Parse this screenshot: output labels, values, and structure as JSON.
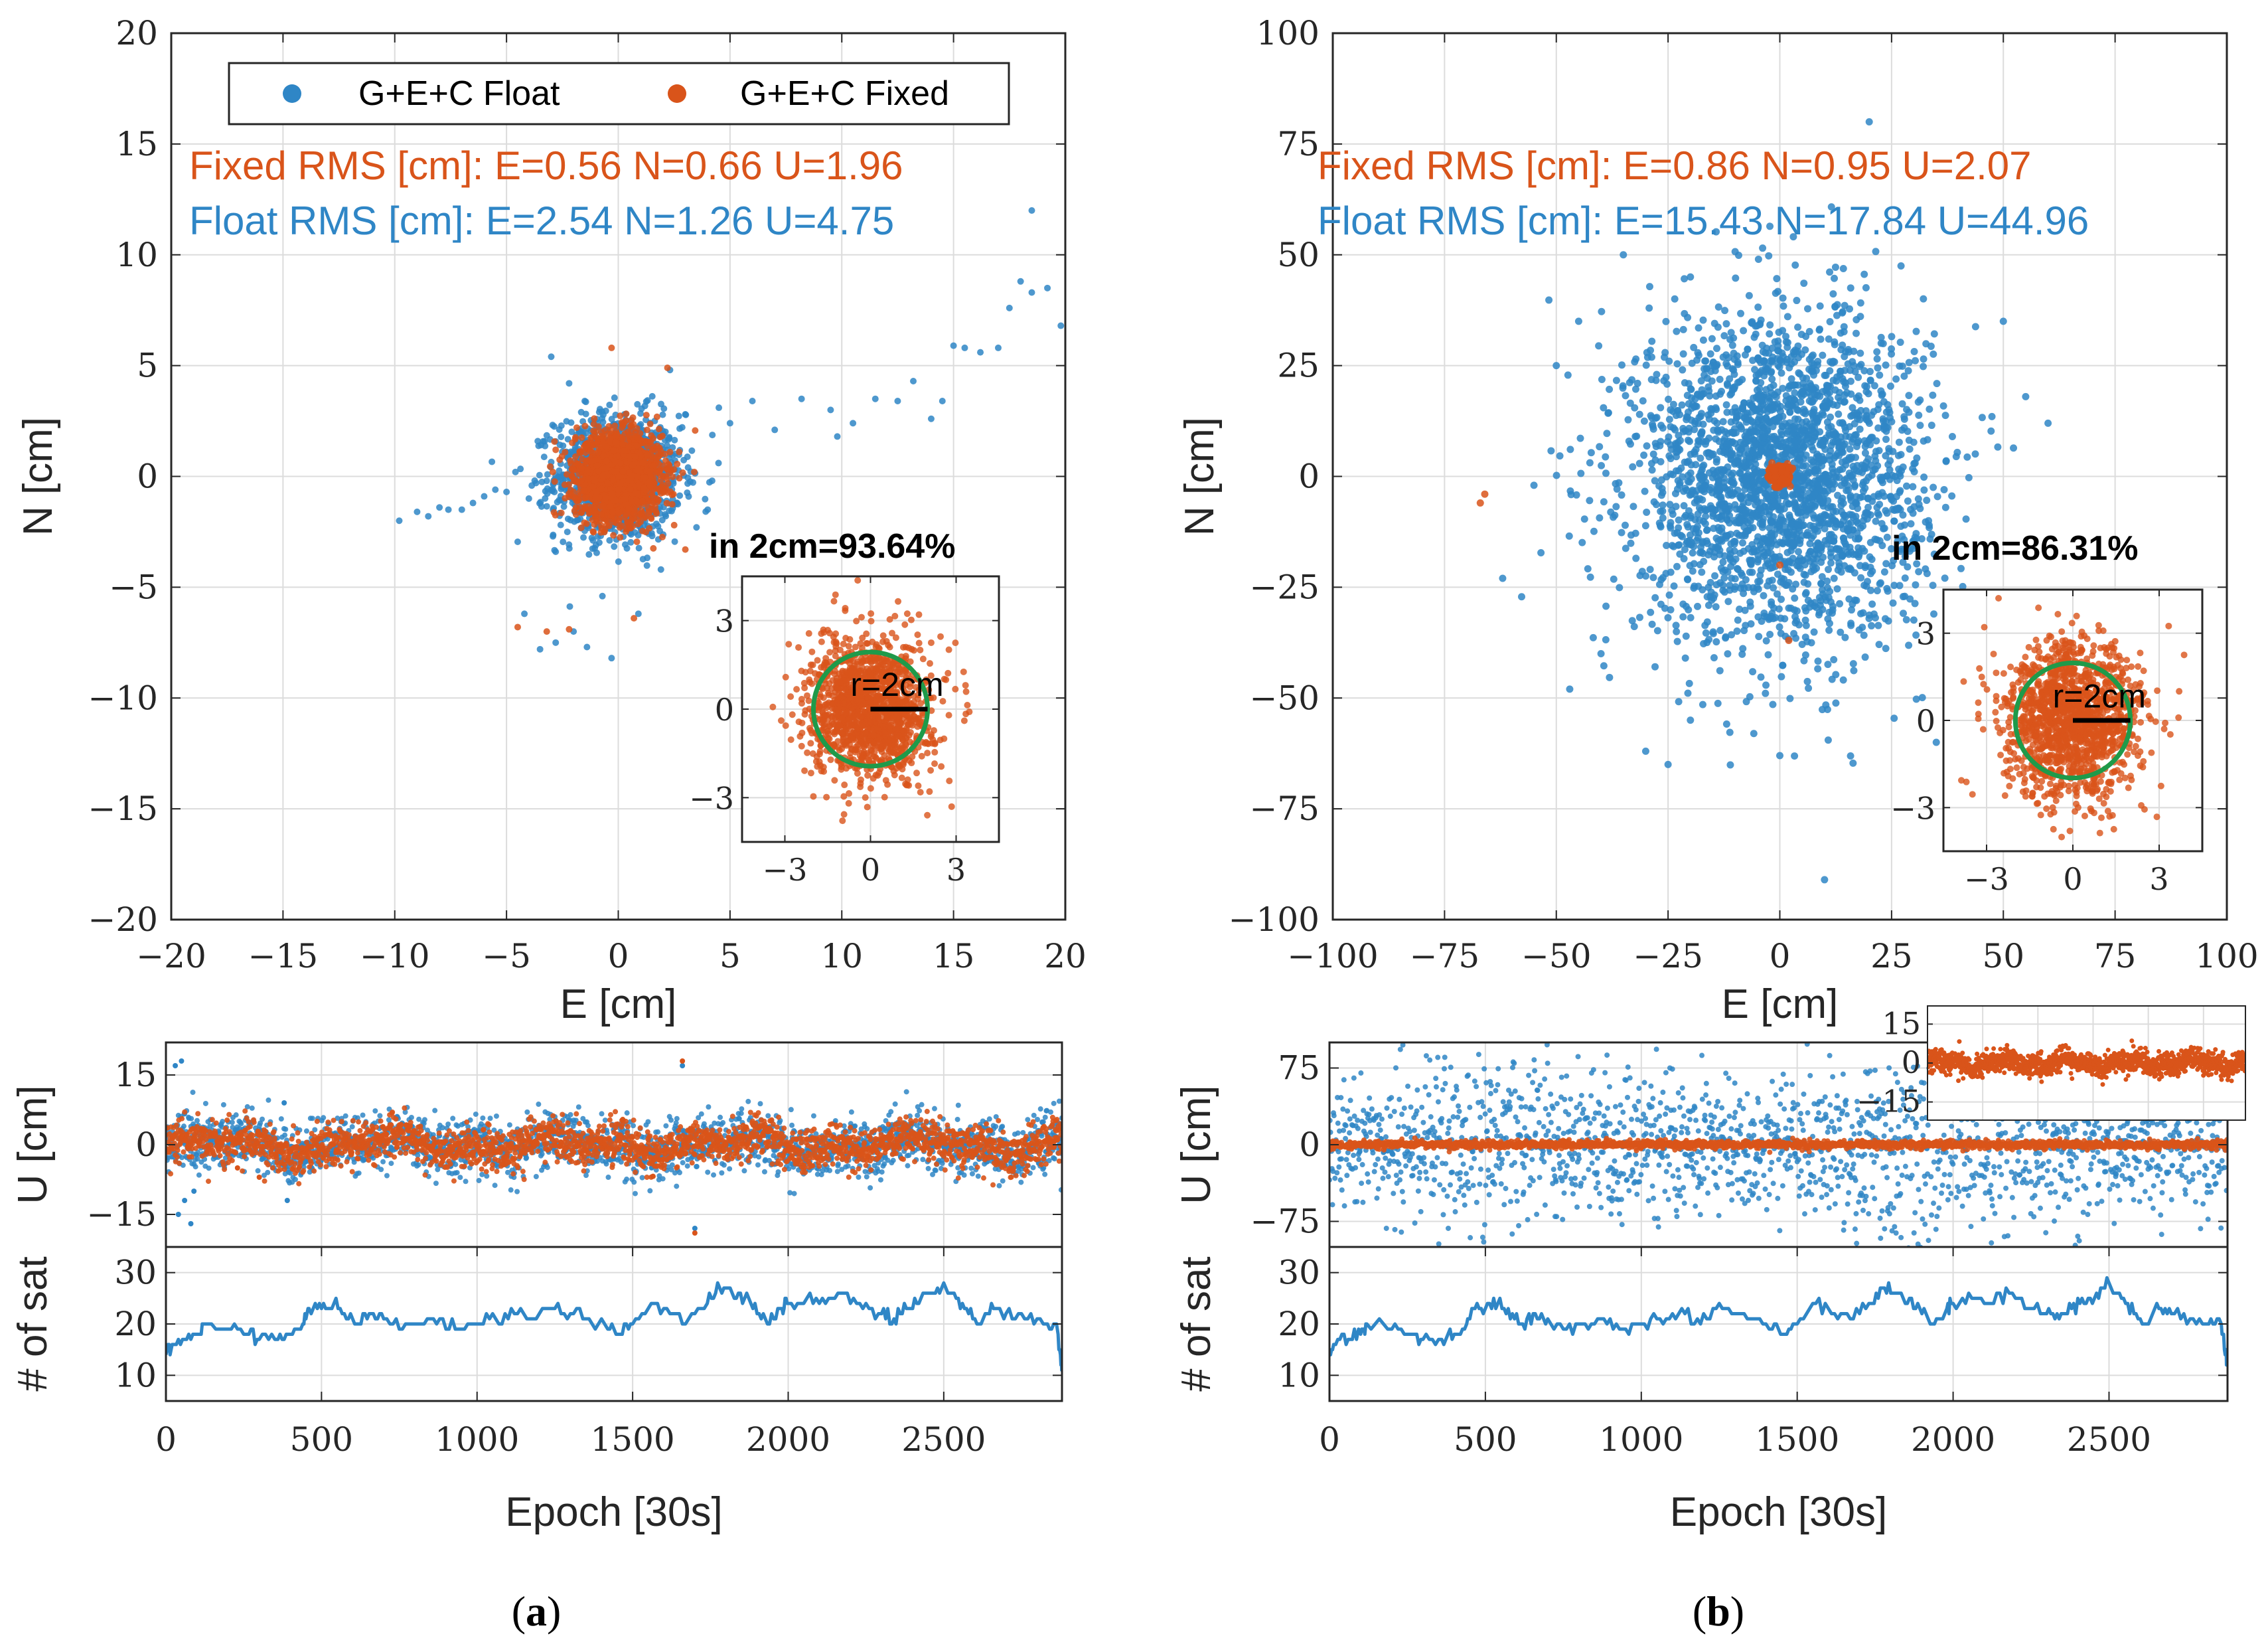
{
  "colors": {
    "float": "#2f86c6",
    "fixed": "#d9541a",
    "circle": "#1f9a4a",
    "axis": "#262626",
    "grid": "#dcdcdc"
  },
  "legend": {
    "float_label": "G+E+C Float",
    "fixed_label": "G+E+C Fixed"
  },
  "panel_labels": {
    "a": "a",
    "b": "b"
  },
  "chart_data": [
    {
      "id": "a_scatter",
      "type": "scatter",
      "xlabel": "E [cm]",
      "ylabel": "N [cm]",
      "xlim": [
        -20,
        20
      ],
      "ylim": [
        -20,
        20
      ],
      "xticks": [
        -20,
        -15,
        -10,
        -5,
        0,
        5,
        10,
        15,
        20
      ],
      "yticks": [
        -20,
        -15,
        -10,
        -5,
        0,
        5,
        10,
        15,
        20
      ],
      "grid": true,
      "legend_position": "top",
      "annotations": {
        "fixed_rms": "Fixed RMS [cm]:  E=0.56  N=0.66  U=1.96",
        "float_rms": "Float  RMS [cm]:  E=2.54  N=1.26  U=4.75",
        "within": "in 2cm=93.64%"
      },
      "series": [
        {
          "name": "G+E+C Float",
          "rms": {
            "E": 2.54,
            "N": 1.26,
            "U": 4.75
          },
          "spread_cm": 1.4,
          "outliers": [
            [
              -9.8,
              -2
            ],
            [
              -9,
              -1.6
            ],
            [
              -8.5,
              -1.8
            ],
            [
              -8,
              -1.4
            ],
            [
              -7.6,
              -1.5
            ],
            [
              -7,
              -1.5
            ],
            [
              -6.5,
              -1.2
            ],
            [
              -6,
              -0.9
            ],
            [
              -5.5,
              -0.6
            ],
            [
              -5,
              -0.7
            ],
            [
              -4.6,
              0.2
            ],
            [
              -4,
              -1
            ],
            [
              -3.2,
              -0.2
            ],
            [
              -2.8,
              -3.4
            ],
            [
              -3,
              5.4
            ],
            [
              -2.2,
              4.2
            ],
            [
              -1.5,
              3.4
            ],
            [
              3,
              2.8
            ],
            [
              3.5,
              -2.3
            ],
            [
              4,
              -1.5
            ],
            [
              4.5,
              3.1
            ],
            [
              5,
              2.4
            ],
            [
              6,
              3.4
            ],
            [
              7,
              2.1
            ],
            [
              8.2,
              3.5
            ],
            [
              9.5,
              3
            ],
            [
              9.8,
              1.8
            ],
            [
              10.5,
              2.4
            ],
            [
              11.5,
              3.5
            ],
            [
              12.5,
              3.4
            ],
            [
              13.2,
              4.3
            ],
            [
              14,
              2.6
            ],
            [
              14.5,
              3.4
            ],
            [
              15,
              5.9
            ],
            [
              15.5,
              5.8
            ],
            [
              16.2,
              5.6
            ],
            [
              17,
              5.8
            ],
            [
              17.5,
              7.6
            ],
            [
              18,
              8.8
            ],
            [
              18.5,
              8.3
            ],
            [
              19.2,
              8.5
            ],
            [
              19.8,
              6.8
            ],
            [
              18.5,
              12
            ],
            [
              -3.5,
              -7.8
            ],
            [
              -2.8,
              -7.5
            ],
            [
              -2,
              -7
            ],
            [
              -4.2,
              -6.2
            ],
            [
              -1.4,
              -7.7
            ],
            [
              -0.3,
              -8.2
            ],
            [
              0.9,
              -6.2
            ]
          ]
        },
        {
          "name": "G+E+C Fixed",
          "rms": {
            "E": 0.56,
            "N": 0.66,
            "U": 1.96
          },
          "spread_cm": 0.95,
          "outliers": [
            [
              -0.3,
              5.8
            ],
            [
              2.2,
              4.9
            ],
            [
              -4.5,
              -6.8
            ],
            [
              -3.2,
              -7
            ],
            [
              -2.2,
              -6.9
            ],
            [
              0.7,
              -6.4
            ],
            [
              2.5,
              -2.2
            ],
            [
              3,
              -3.3
            ],
            [
              -2.8,
              1.2
            ],
            [
              3.4,
              0.2
            ]
          ]
        }
      ]
    },
    {
      "id": "b_scatter",
      "type": "scatter",
      "xlabel": "E [cm]",
      "ylabel": "N [cm]",
      "xlim": [
        -100,
        100
      ],
      "ylim": [
        -100,
        100
      ],
      "xticks": [
        -100,
        -75,
        -50,
        -25,
        0,
        25,
        50,
        75,
        100
      ],
      "yticks": [
        -100,
        -75,
        -50,
        -25,
        0,
        25,
        50,
        75,
        100
      ],
      "grid": true,
      "annotations": {
        "fixed_rms": "Fixed RMS [cm]:  E=0.86     N=0.95     U=2.07",
        "float_rms": "Float  RMS [cm]:  E=15.43  N=17.84  U=44.96",
        "within": "in 2cm=86.31%"
      },
      "series": [
        {
          "name": "G+E+C Float",
          "rms": {
            "E": 15.43,
            "N": 17.84,
            "U": 44.96
          },
          "spread_cm": 16,
          "outliers": [
            [
              20,
              80
            ],
            [
              -62,
              -23
            ],
            [
              -55,
              -2
            ],
            [
              -47,
              -48
            ],
            [
              -30,
              -62
            ],
            [
              -25,
              -65
            ],
            [
              -20,
              -55
            ],
            [
              10,
              -91
            ],
            [
              0,
              -63
            ],
            [
              35,
              -60
            ],
            [
              45,
              -70
            ],
            [
              53,
              -62
            ],
            [
              -35,
              50
            ],
            [
              -45,
              35
            ],
            [
              50,
              35
            ],
            [
              -50,
              25
            ],
            [
              -40,
              -40
            ],
            [
              -20,
              45
            ],
            [
              55,
              18
            ],
            [
              60,
              12
            ]
          ]
        },
        {
          "name": "G+E+C Fixed",
          "rms": {
            "E": 0.86,
            "N": 0.95,
            "U": 2.07
          },
          "spread_cm": 1.2,
          "outliers": [
            [
              -67,
              -6
            ],
            [
              -66,
              -4
            ],
            [
              0,
              -20
            ],
            [
              2,
              -37
            ]
          ]
        }
      ]
    },
    {
      "id": "a_inset",
      "type": "scatter",
      "xlim": [
        -4.5,
        4.5
      ],
      "ylim": [
        -4.5,
        4.5
      ],
      "xticks": [
        -3,
        0,
        3
      ],
      "yticks": [
        -3,
        0,
        3
      ],
      "circle_radius_cm": 2,
      "circle_label": "r=2cm",
      "series": [
        {
          "name": "G+E+C Fixed",
          "spread_cm": 1.05
        }
      ]
    },
    {
      "id": "b_inset",
      "type": "scatter",
      "xlim": [
        -4.5,
        4.5
      ],
      "ylim": [
        -4.5,
        4.5
      ],
      "xticks": [
        -3,
        0,
        3
      ],
      "yticks": [
        -3,
        0,
        3
      ],
      "circle_radius_cm": 2,
      "circle_label": "r=2cm",
      "series": [
        {
          "name": "G+E+C Fixed",
          "spread_cm": 1.2
        }
      ]
    },
    {
      "id": "a_up",
      "type": "scatter",
      "ylabel": "U [cm]",
      "xlim": [
        0,
        2880
      ],
      "ylim": [
        -22,
        22
      ],
      "yticks": [
        -15,
        0,
        15
      ],
      "grid": true,
      "series": [
        {
          "name": "G+E+C Float",
          "noise_cm": 3.0,
          "outliers": [
            [
              30,
              17
            ],
            [
              40,
              -15
            ],
            [
              50,
              18
            ],
            [
              60,
              -12
            ],
            [
              80,
              -17
            ],
            [
              90,
              -10
            ],
            [
              1660,
              17
            ],
            [
              1700,
              -18
            ],
            [
              380,
              9
            ],
            [
              390,
              -12
            ]
          ]
        },
        {
          "name": "G+E+C Fixed",
          "noise_cm": 2.2,
          "outliers": [
            [
              1660,
              18
            ],
            [
              1700,
              -19
            ],
            [
              230,
              -5
            ],
            [
              300,
              -7
            ]
          ]
        }
      ]
    },
    {
      "id": "b_up",
      "type": "scatter",
      "ylabel": "U [cm]",
      "xlim": [
        0,
        2880
      ],
      "ylim": [
        -100,
        100
      ],
      "yticks": [
        -75,
        0,
        75
      ],
      "grid": true,
      "series": [
        {
          "name": "G+E+C Float",
          "noise_cm": 45
        },
        {
          "name": "G+E+C Fixed",
          "noise_cm": 2.0
        }
      ]
    },
    {
      "id": "b_up_inset",
      "type": "scatter",
      "xlim": [
        0,
        2880
      ],
      "ylim": [
        -22,
        22
      ],
      "yticks": [
        -15,
        0,
        15
      ],
      "series": [
        {
          "name": "G+E+C Fixed",
          "noise_cm": 2.2
        }
      ]
    },
    {
      "id": "a_sat",
      "type": "line",
      "xlabel": "Epoch [30s]",
      "ylabel": "# of sat",
      "xlim": [
        0,
        2880
      ],
      "ylim": [
        5,
        35
      ],
      "xticks": [
        0,
        500,
        1000,
        1500,
        2000,
        2500
      ],
      "yticks": [
        10,
        20,
        30
      ],
      "grid": true,
      "series": [
        {
          "name": "# of sat",
          "x": [
            0,
            20,
            60,
            100,
            120,
            200,
            260,
            300,
            360,
            400,
            440,
            460,
            500,
            540,
            580,
            620,
            660,
            700,
            760,
            820,
            880,
            940,
            1000,
            1060,
            1120,
            1180,
            1240,
            1300,
            1360,
            1420,
            1460,
            1500,
            1560,
            1620,
            1680,
            1740,
            1780,
            1820,
            1860,
            1900,
            1940,
            1980,
            2000,
            2060,
            2120,
            2180,
            2240,
            2300,
            2340,
            2380,
            2420,
            2460,
            2500,
            2540,
            2580,
            2620,
            2660,
            2700,
            2760,
            2820,
            2860,
            2875,
            2880
          ],
          "y": [
            14,
            16,
            17,
            18,
            20,
            19,
            18,
            17,
            17,
            18,
            20,
            23,
            23,
            24,
            21,
            20,
            22,
            21,
            19,
            20,
            21,
            19,
            20,
            21,
            22,
            21,
            23,
            22,
            21,
            19,
            18,
            20,
            24,
            22,
            21,
            24,
            27,
            26,
            25,
            22,
            20,
            23,
            24,
            25,
            24,
            26,
            23,
            22,
            21,
            23,
            24,
            26,
            28,
            25,
            22,
            20,
            23,
            22,
            21,
            20,
            20,
            14,
            12
          ]
        }
      ]
    },
    {
      "id": "b_sat",
      "type": "line",
      "xlabel": "Epoch [30s]",
      "ylabel": "# of sat",
      "xlim": [
        0,
        2880
      ],
      "ylim": [
        5,
        35
      ],
      "xticks": [
        0,
        500,
        1000,
        1500,
        2000,
        2500
      ],
      "yticks": [
        10,
        20,
        30
      ],
      "grid": true,
      "series": [
        {
          "name": "# of sat",
          "x": [
            0,
            20,
            60,
            100,
            120,
            200,
            260,
            300,
            360,
            400,
            440,
            460,
            500,
            540,
            580,
            620,
            660,
            700,
            760,
            820,
            880,
            940,
            1000,
            1060,
            1120,
            1180,
            1240,
            1300,
            1360,
            1420,
            1460,
            1500,
            1560,
            1620,
            1680,
            1740,
            1780,
            1820,
            1860,
            1900,
            1940,
            1980,
            2000,
            2060,
            2120,
            2180,
            2240,
            2300,
            2340,
            2380,
            2420,
            2460,
            2500,
            2540,
            2580,
            2620,
            2660,
            2700,
            2760,
            2820,
            2860,
            2875,
            2880
          ],
          "y": [
            14,
            16,
            17,
            18,
            20,
            19,
            18,
            17,
            17,
            18,
            20,
            23,
            23,
            24,
            21,
            20,
            22,
            21,
            19,
            20,
            21,
            19,
            20,
            21,
            22,
            21,
            23,
            22,
            21,
            19,
            18,
            20,
            24,
            22,
            21,
            24,
            27,
            26,
            25,
            22,
            20,
            23,
            24,
            25,
            24,
            26,
            23,
            22,
            21,
            23,
            24,
            26,
            28,
            25,
            22,
            20,
            23,
            22,
            21,
            20,
            20,
            14,
            12
          ]
        }
      ]
    }
  ]
}
